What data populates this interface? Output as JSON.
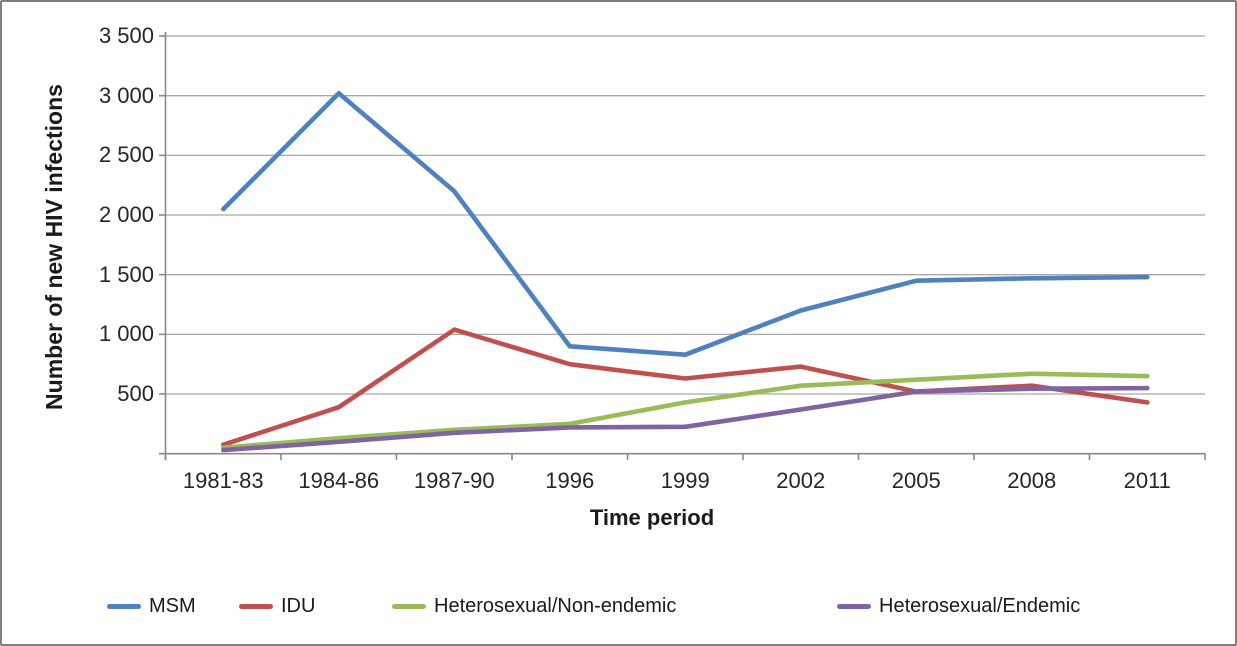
{
  "chart_data": {
    "type": "line",
    "title": "",
    "xlabel": "Time period",
    "ylabel": "Number of new HIV infections",
    "categories": [
      "1981-83",
      "1984-86",
      "1987-90",
      "1996",
      "1999",
      "2002",
      "2005",
      "2008",
      "2011"
    ],
    "series": [
      {
        "name": "MSM",
        "color": "#4F81BD",
        "values": [
          2050,
          3020,
          2200,
          900,
          830,
          1200,
          1450,
          1470,
          1480
        ]
      },
      {
        "name": "IDU",
        "color": "#C0504D",
        "values": [
          75,
          390,
          1040,
          750,
          630,
          730,
          520,
          570,
          430
        ]
      },
      {
        "name": "Heterosexual/Non-endemic",
        "color": "#9BBB59",
        "values": [
          50,
          130,
          200,
          250,
          430,
          570,
          620,
          670,
          650
        ]
      },
      {
        "name": "Heterosexual/Endemic",
        "color": "#8064A2",
        "values": [
          30,
          100,
          175,
          220,
          225,
          370,
          520,
          545,
          550
        ]
      }
    ],
    "ylim": [
      0,
      3500
    ],
    "ytick_step": 500,
    "ytick_labels": [
      "500",
      "1 000",
      "1 500",
      "2 000",
      "2 500",
      "3 000",
      "3 500"
    ],
    "grid": "horizontal",
    "legend_position": "bottom"
  },
  "colors": {
    "background": "#FFFFFF",
    "border": "#7F7F7F",
    "gridline": "#A8A8A8",
    "axis": "#898989",
    "text": "#262626"
  }
}
